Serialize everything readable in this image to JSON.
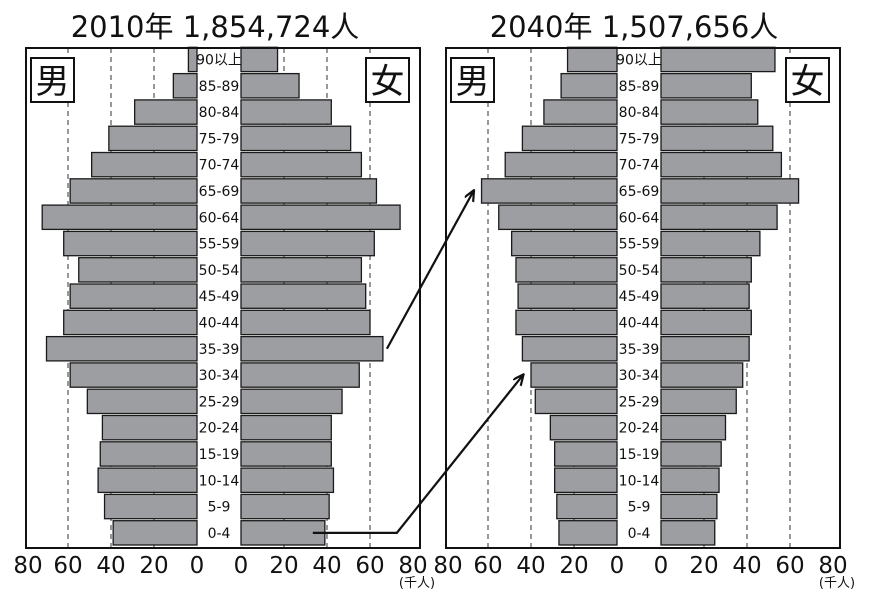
{
  "chart_data": {
    "type": "bar",
    "unit": "(千人)",
    "male_label": "男",
    "female_label": "女",
    "x_ticks": [
      "80",
      "60",
      "40",
      "20",
      "0",
      "0",
      "20",
      "40",
      "60",
      "80"
    ],
    "age_groups": [
      "0-4",
      "5-9",
      "10-14",
      "15-19",
      "20-24",
      "25-29",
      "30-34",
      "35-39",
      "40-44",
      "45-49",
      "50-54",
      "55-59",
      "60-64",
      "65-69",
      "70-74",
      "75-79",
      "80-84",
      "85-89",
      "90以上"
    ],
    "pyramids": [
      {
        "title": "2010年 1,854,724人",
        "male": [
          39,
          43,
          46,
          45,
          44,
          51,
          59,
          70,
          62,
          59,
          55,
          62,
          72,
          59,
          49,
          41,
          29,
          11,
          4
        ],
        "female": [
          39,
          41,
          43,
          42,
          42,
          47,
          55,
          66,
          60,
          58,
          56,
          62,
          74,
          63,
          56,
          51,
          42,
          27,
          17
        ]
      },
      {
        "title": "2040年 1,507,656人",
        "male": [
          27,
          28,
          29,
          29,
          31,
          38,
          40,
          44,
          47,
          46,
          47,
          49,
          55,
          63,
          52,
          44,
          34,
          26,
          23
        ],
        "female": [
          25,
          26,
          27,
          28,
          30,
          35,
          38,
          41,
          42,
          41,
          42,
          46,
          54,
          64,
          56,
          52,
          45,
          42,
          53
        ]
      }
    ],
    "annotations": [
      {
        "from_panel": 0,
        "from_age": "35-39",
        "to_panel": 1,
        "to_age": "65-69"
      },
      {
        "from_panel": 0,
        "from_age": "0-4",
        "to_panel": 1,
        "to_age": "30-34"
      }
    ]
  }
}
